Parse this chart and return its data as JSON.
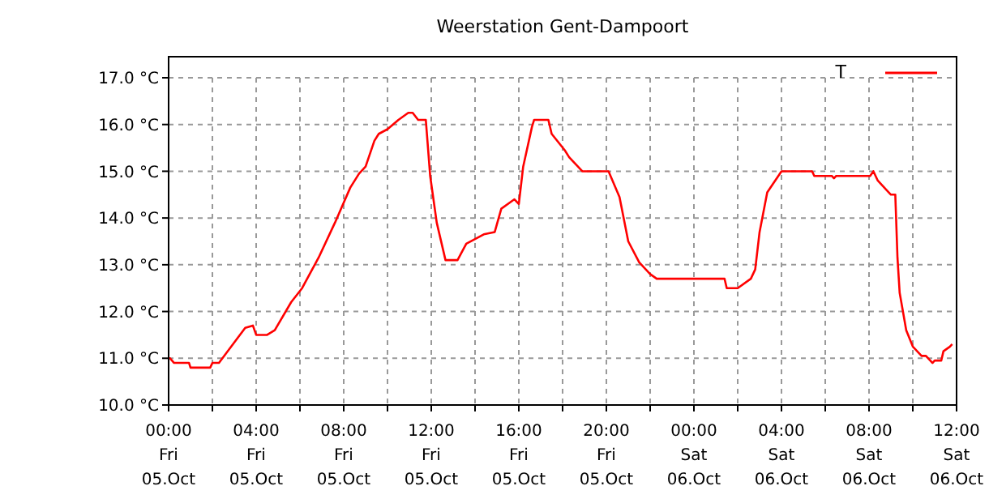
{
  "chart_data": {
    "type": "line",
    "title": "Weerstation Gent-Dampoort",
    "x": [
      "--10-05T00:00",
      "--10-05T00:04",
      "--10-05T00:15",
      "--10-05T00:56",
      "--10-05T01:00",
      "--10-05T01:54",
      "--10-05T02:00",
      "--10-05T02:18",
      "--10-05T03:30",
      "--10-05T03:51",
      "--10-05T04:00",
      "--10-05T04:30",
      "--10-05T04:51",
      "--10-05T05:36",
      "--10-05T06:06",
      "--10-05T06:51",
      "--10-05T07:36",
      "--10-05T08:18",
      "--10-05T08:42",
      "--10-05T09:00",
      "--10-05T09:24",
      "--10-05T09:36",
      "--10-05T10:00",
      "--10-05T10:30",
      "--10-05T10:57",
      "--10-05T11:09",
      "--10-05T11:24",
      "--10-05T11:45",
      "--10-05T11:57",
      "--10-05T12:15",
      "--10-05T12:39",
      "--10-05T13:12",
      "--10-05T13:36",
      "--10-05T14:24",
      "--10-05T14:54",
      "--10-05T15:12",
      "--10-05T15:48",
      "--10-05T16:00",
      "--10-05T16:12",
      "--10-05T16:36",
      "--10-05T16:42",
      "--10-05T17:21",
      "--10-05T17:30",
      "--10-05T18:06",
      "--10-05T18:18",
      "--10-05T18:54",
      "--10-05T20:06",
      "--10-05T20:36",
      "--10-05T21:00",
      "--10-05T21:30",
      "--10-05T22:00",
      "--10-05T22:18",
      "--10-06T01:24",
      "--10-06T01:30",
      "--10-06T02:00",
      "--10-06T02:36",
      "--10-06T02:48",
      "--10-06T03:00",
      "--10-06T03:21",
      "--10-06T04:00",
      "--10-06T05:24",
      "--10-06T05:30",
      "--10-06T06:18",
      "--10-06T06:24",
      "--10-06T06:30",
      "--10-06T07:18",
      "--10-06T08:03",
      "--10-06T08:12",
      "--10-06T08:24",
      "--10-06T08:48",
      "--10-06T09:00",
      "--10-06T09:12",
      "--10-06T09:18",
      "--10-06T09:24",
      "--10-06T09:42",
      "--10-06T10:00",
      "--10-06T10:24",
      "--10-06T10:36",
      "--10-06T10:54",
      "--10-06T11:00",
      "--10-06T11:18",
      "--10-06T11:24",
      "--10-06T11:42",
      "--10-06T11:48"
    ],
    "series": [
      {
        "name": "T",
        "color": "#ff0000",
        "values": [
          11.0,
          11.0,
          10.9,
          10.9,
          10.8,
          10.8,
          10.9,
          10.9,
          11.65,
          11.7,
          11.5,
          11.5,
          11.6,
          12.2,
          12.5,
          13.15,
          13.9,
          14.65,
          14.95,
          15.1,
          15.65,
          15.8,
          15.9,
          16.1,
          16.25,
          16.25,
          16.1,
          16.1,
          14.9,
          13.9,
          13.1,
          13.1,
          13.45,
          13.65,
          13.7,
          14.2,
          14.4,
          14.3,
          15.1,
          15.95,
          16.1,
          16.1,
          15.8,
          15.45,
          15.3,
          15.0,
          15.0,
          14.45,
          13.5,
          13.05,
          12.8,
          12.7,
          12.7,
          12.5,
          12.5,
          12.7,
          12.9,
          13.7,
          14.55,
          15.0,
          15.0,
          14.9,
          14.9,
          14.85,
          14.9,
          14.9,
          14.9,
          15.0,
          14.8,
          14.6,
          14.5,
          14.5,
          13.15,
          12.4,
          11.6,
          11.25,
          11.05,
          11.05,
          10.9,
          10.95,
          10.95,
          11.15,
          11.25,
          11.3
        ]
      }
    ],
    "xlim": [
      "--10-05T00:00",
      "--10-06T12:00"
    ],
    "xticks": [
      {
        "value": "--10-05T00:00",
        "label": "00:00\nFri\n05.Oct"
      },
      {
        "value": "--10-05T02:00",
        "label": null
      },
      {
        "value": "--10-05T04:00",
        "label": "04:00\nFri\n05.Oct"
      },
      {
        "value": "--10-05T06:00",
        "label": null
      },
      {
        "value": "--10-05T08:00",
        "label": "08:00\nFri\n05.Oct"
      },
      {
        "value": "--10-05T10:00",
        "label": null
      },
      {
        "value": "--10-05T12:00",
        "label": "12:00\nFri\n05.Oct"
      },
      {
        "value": "--10-05T14:00",
        "label": null
      },
      {
        "value": "--10-05T16:00",
        "label": "16:00\nFri\n05.Oct"
      },
      {
        "value": "--10-05T18:00",
        "label": null
      },
      {
        "value": "--10-05T20:00",
        "label": "20:00\nFri\n05.Oct"
      },
      {
        "value": "--10-05T22:00",
        "label": null
      },
      {
        "value": "--10-06T00:00",
        "label": "00:00\nSat\n06.Oct"
      },
      {
        "value": "--10-06T02:00",
        "label": null
      },
      {
        "value": "--10-06T04:00",
        "label": "04:00\nSat\n06.Oct"
      },
      {
        "value": "--10-06T06:00",
        "label": null
      },
      {
        "value": "--10-06T08:00",
        "label": "08:00\nSat\n06.Oct"
      },
      {
        "value": "--10-06T10:00",
        "label": null
      },
      {
        "value": "--10-06T12:00",
        "label": "12:00\nSat\n06.Oct"
      }
    ],
    "ylim": [
      10,
      17
    ],
    "yticks": [
      {
        "value": 10,
        "label": "10.0 °C"
      },
      {
        "value": 11,
        "label": "11.0 °C"
      },
      {
        "value": 12,
        "label": "12.0 °C"
      },
      {
        "value": 13,
        "label": "13.0 °C"
      },
      {
        "value": 14,
        "label": "14.0 °C"
      },
      {
        "value": 15,
        "label": "15.0 °C"
      },
      {
        "value": 16,
        "label": "16.0 °C"
      },
      {
        "value": 17,
        "label": "17.0 °C"
      }
    ],
    "grid": true,
    "legend": "top right",
    "marker": "none",
    "line_style": "solid"
  }
}
